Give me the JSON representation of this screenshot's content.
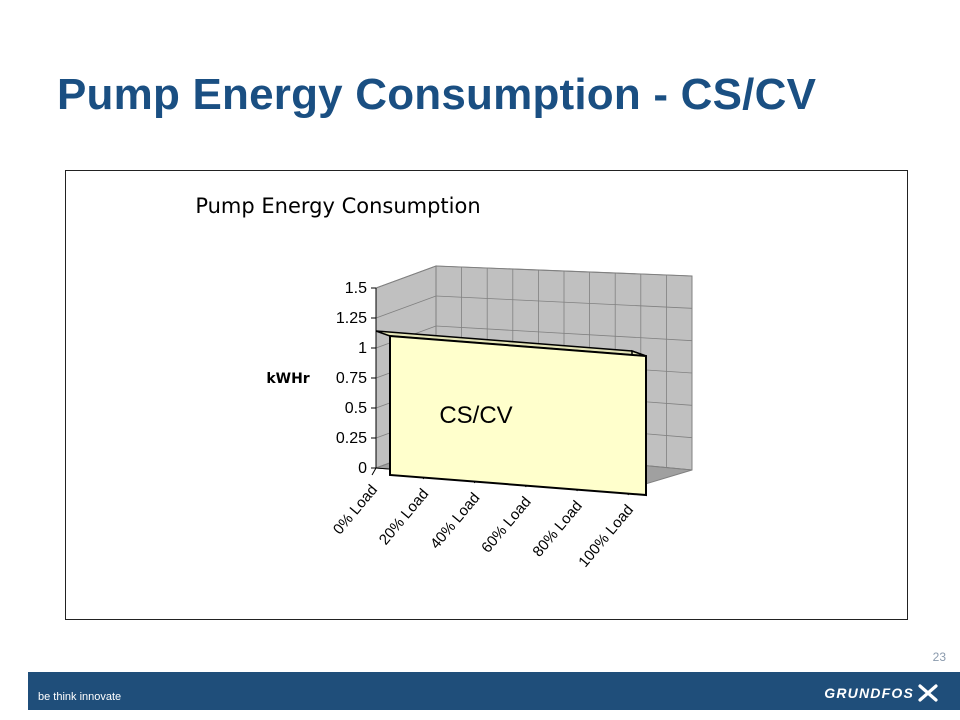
{
  "slide": {
    "title": "Pump Energy Consumption - CS/CV",
    "page_number": "23"
  },
  "footer": {
    "tagline": "be think innovate",
    "logo": "GRUNDFOS"
  },
  "colors": {
    "title": "#1a4f82",
    "footer": "#1f4e7a",
    "area_fill": "#ffffcc",
    "wall": "#c0c0c0"
  },
  "chart_data": {
    "type": "area",
    "style": "3d",
    "title": "Pump Energy Consumption",
    "ylabel": "kWHr",
    "xlabel": "",
    "categories": [
      "0% Load",
      "20% Load",
      "40% Load",
      "60% Load",
      "80% Load",
      "100% Load"
    ],
    "series": [
      {
        "name": "CS/CV",
        "values": [
          1.25,
          1.25,
          1.25,
          1.25,
          1.25,
          1.25
        ]
      }
    ],
    "yticks": [
      "0",
      "0.25",
      "0.5",
      "0.75",
      "1",
      "1.25",
      "1.5"
    ],
    "ylim": [
      0,
      1.5
    ],
    "grid": true,
    "legend": "none"
  }
}
